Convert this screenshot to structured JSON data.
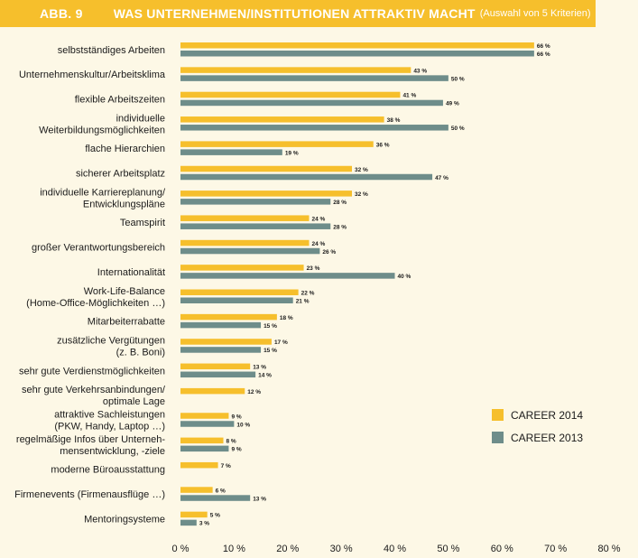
{
  "header": {
    "abb": "ABB. 9",
    "title": "WAS UNTERNEHMEN/INSTITUTIONEN ATTRAKTIV MACHT",
    "subtitle": "(Auswahl von 5 Kriterien)"
  },
  "colors": {
    "series_2014": "#f6bf2c",
    "series_2013": "#6e8d8a",
    "header": "#f6bf2c",
    "background": "#fdf8e6"
  },
  "chart_data": {
    "type": "bar",
    "orientation": "horizontal",
    "categories": [
      [
        "selbstständiges Arbeiten"
      ],
      [
        "Unternehmenskultur/Arbeitsklima"
      ],
      [
        "flexible Arbeitszeiten"
      ],
      [
        "individuelle",
        "Weiterbildungsmöglichkeiten"
      ],
      [
        "flache Hierarchien"
      ],
      [
        "sicherer Arbeitsplatz"
      ],
      [
        "individuelle Karriereplanung/",
        "Entwicklungspläne"
      ],
      [
        "Teamspirit"
      ],
      [
        "großer Verantwortungsbereich"
      ],
      [
        "Internationalität"
      ],
      [
        "Work-Life-Balance",
        "(Home-Office-Möglichkeiten …)"
      ],
      [
        "Mitarbeiterrabatte"
      ],
      [
        "zusätzliche Vergütungen",
        "(z. B. Boni)"
      ],
      [
        "sehr gute Verdienstmöglichkeiten"
      ],
      [
        "sehr gute Verkehrsanbindungen/",
        "optimale Lage"
      ],
      [
        "attraktive Sachleistungen",
        "(PKW, Handy, Laptop …)"
      ],
      [
        "regelmäßige Infos über Unterneh-",
        "mensentwicklung, -ziele"
      ],
      [
        "moderne Büroausstattung"
      ],
      [
        "Firmenevents (Firmenausflüge …)"
      ],
      [
        "Mentoringsysteme"
      ]
    ],
    "series": [
      {
        "name": "CAREER 2014",
        "color": "#f6bf2c",
        "values": [
          66,
          43,
          41,
          38,
          36,
          32,
          32,
          24,
          24,
          23,
          22,
          18,
          17,
          13,
          12,
          9,
          8,
          7,
          6,
          5
        ]
      },
      {
        "name": "CAREER 2013",
        "color": "#6e8d8a",
        "values": [
          66,
          50,
          49,
          50,
          19,
          47,
          28,
          28,
          26,
          40,
          21,
          15,
          15,
          14,
          null,
          10,
          9,
          null,
          13,
          3
        ]
      }
    ],
    "value_suffix": " %",
    "xlim": [
      0,
      80
    ],
    "xticks": [
      0,
      10,
      20,
      30,
      40,
      50,
      60,
      70,
      80
    ],
    "xtick_labels": [
      "0 %",
      "10 %",
      "20 %",
      "30 %",
      "40 %",
      "50 %",
      "60 %",
      "70 %",
      "80 %"
    ],
    "legend_position": "right"
  }
}
